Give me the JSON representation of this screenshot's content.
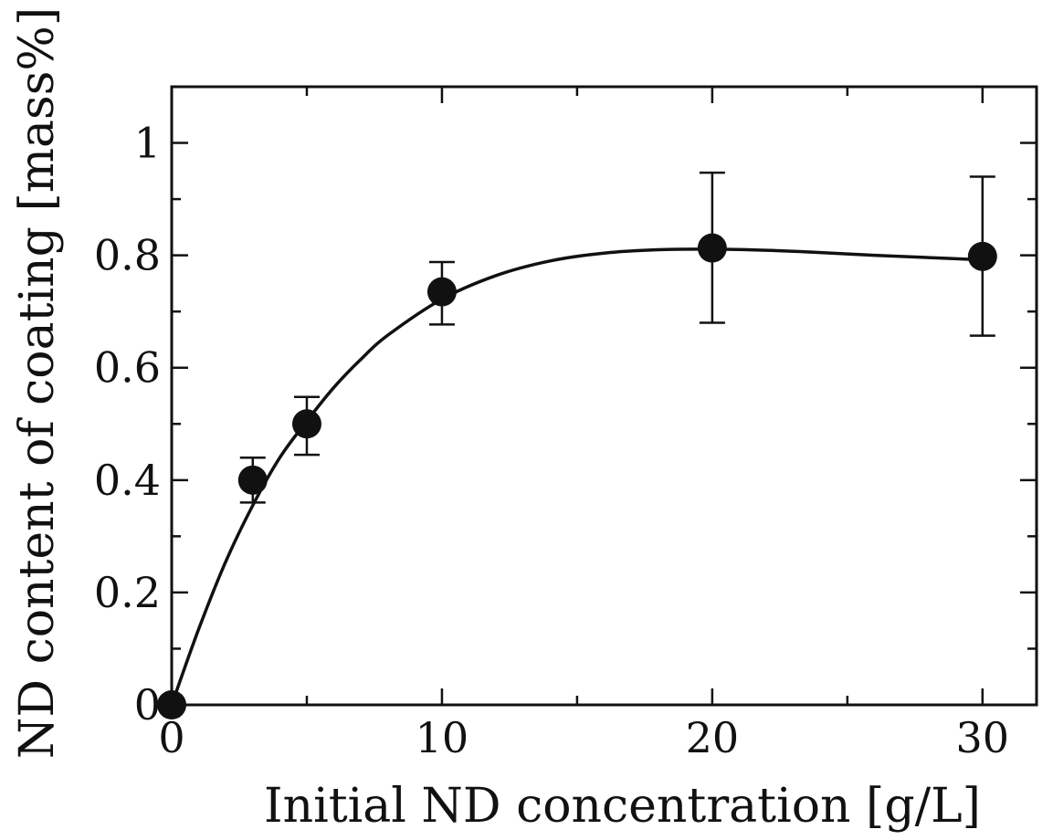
{
  "chart_data": {
    "type": "scatter",
    "title": "",
    "xlabel": "Initial ND concentration [g/L]",
    "ylabel": "ND content of coating [mass%]",
    "xlim": [
      0,
      32
    ],
    "ylim": [
      0,
      1.1
    ],
    "x_ticks": [
      0,
      10,
      20,
      30
    ],
    "x_tick_labels": [
      "0",
      "10",
      "20",
      "30"
    ],
    "x_minor_step": 5,
    "y_ticks": [
      0,
      0.2,
      0.4,
      0.6,
      0.8,
      1
    ],
    "y_tick_labels": [
      "0",
      "0.2",
      "0.4",
      "0.6",
      "0.8",
      "1"
    ],
    "y_minor_step": 0.1,
    "grid": false,
    "series": [
      {
        "x": [
          0,
          3,
          5,
          10,
          20,
          30
        ],
        "y": [
          0,
          0.4,
          0.5,
          0.735,
          0.813,
          0.798
        ],
        "err_low": [
          0,
          0.36,
          0.445,
          0.677,
          0.68,
          0.657
        ],
        "err_high": [
          0,
          0.44,
          0.548,
          0.788,
          0.947,
          0.94
        ],
        "marker": "filled-circle",
        "color": "#111111"
      }
    ],
    "fit_curve": {
      "style": "solid",
      "color": "#111111",
      "x": [
        0,
        1,
        2,
        3,
        4,
        5,
        6,
        7,
        8,
        10,
        12,
        14,
        16,
        18,
        20,
        22,
        24,
        26,
        28,
        30
      ],
      "y": [
        0,
        0.135,
        0.255,
        0.355,
        0.44,
        0.505,
        0.565,
        0.615,
        0.658,
        0.722,
        0.764,
        0.79,
        0.804,
        0.81,
        0.811,
        0.809,
        0.805,
        0.8,
        0.796,
        0.792
      ]
    }
  }
}
